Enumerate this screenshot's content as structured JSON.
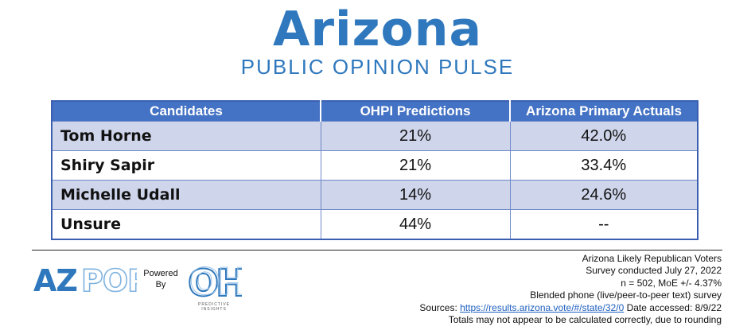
{
  "header": {
    "title": "Arizona",
    "subtitle": "PUBLIC OPINION PULSE"
  },
  "table": {
    "columns": [
      "Candidates",
      "OHPI Predictions",
      "Arizona Primary Actuals"
    ],
    "rows": [
      {
        "candidate": "Tom Horne",
        "prediction": "21%",
        "actual": "42.0%"
      },
      {
        "candidate": "Shiry Sapir",
        "prediction": "21%",
        "actual": "33.4%"
      },
      {
        "candidate": "Michelle Udall",
        "prediction": "14%",
        "actual": "24.6%"
      },
      {
        "candidate": "Unsure",
        "prediction": "44%",
        "actual": "--"
      }
    ]
  },
  "footer": {
    "azpop_logo_text": "AZPOP",
    "powered_by_line1": "Powered",
    "powered_by_line2": "By",
    "oh_logo_text": "OH",
    "oh_logo_sub": "PREDICTIVE INSIGHTS",
    "notes": {
      "line1": "Arizona Likely Republican Voters",
      "line2": "Survey conducted July 27, 2022",
      "line3": "n = 502, MoE +/- 4.37%",
      "line4": "Blended phone (live/peer-to-peer text) survey",
      "sources_label": "Sources: ",
      "sources_link": "https://results.arizona.vote/#/state/32/0",
      "date_accessed": " Date accessed: 8/9/22",
      "line6": "Totals may not appear to be calculated correctly, due to rounding"
    }
  },
  "colors": {
    "brand_blue": "#2f78bd",
    "table_header": "#4472c4",
    "row_band": "#cfd5ea",
    "azpop_light": "#7fb3e0"
  }
}
